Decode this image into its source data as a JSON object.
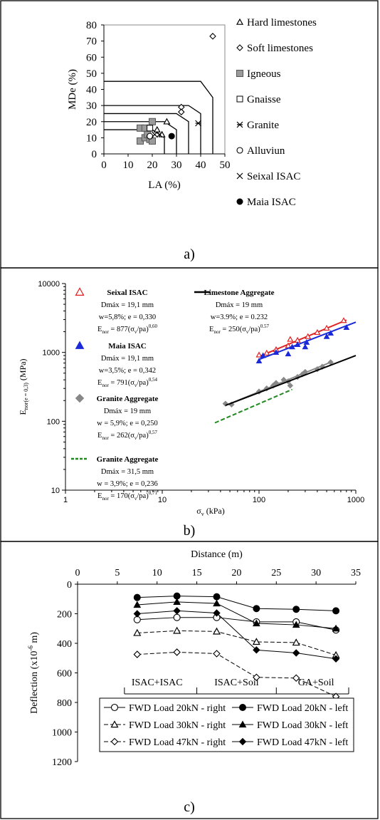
{
  "panels": [
    {
      "label": "a)"
    },
    {
      "label": "b)"
    },
    {
      "label": "c)"
    }
  ],
  "chart_data": [
    {
      "type": "scatter",
      "xlabel": "LA (%)",
      "ylabel": "MDe (%)",
      "xlim": [
        0,
        50
      ],
      "ylim": [
        0,
        80
      ],
      "x_ticks": [
        "0",
        "10",
        "20",
        "30",
        "40",
        "50"
      ],
      "y_ticks": [
        "0",
        "10",
        "20",
        "30",
        "40",
        "50",
        "60",
        "70",
        "80"
      ],
      "boundaries": [
        {
          "points": [
            [
              0,
              15
            ],
            [
              20,
              15
            ],
            [
              25,
              10
            ],
            [
              25,
              0
            ]
          ]
        },
        {
          "points": [
            [
              0,
              20
            ],
            [
              25,
              20
            ],
            [
              30,
              15
            ],
            [
              30,
              0
            ]
          ]
        },
        {
          "points": [
            [
              0,
              25
            ],
            [
              30,
              25
            ],
            [
              35,
              20
            ],
            [
              35,
              0
            ]
          ]
        },
        {
          "points": [
            [
              0,
              30
            ],
            [
              35,
              30
            ],
            [
              40,
              25
            ],
            [
              40,
              0
            ]
          ]
        },
        {
          "points": [
            [
              0,
              45
            ],
            [
              40,
              45
            ],
            [
              45,
              35
            ],
            [
              45,
              0
            ]
          ]
        }
      ],
      "series": [
        {
          "name": "Hard limestones",
          "marker": "triangle",
          "points": [
            [
              22,
              15
            ],
            [
              24,
              12
            ],
            [
              26,
              20
            ]
          ]
        },
        {
          "name": "Soft limestones",
          "marker": "diamond",
          "points": [
            [
              32,
              29
            ],
            [
              32,
              26
            ],
            [
              45,
              73
            ]
          ]
        },
        {
          "name": "Igneous",
          "marker": "gray-square",
          "points": [
            [
              15,
              8
            ],
            [
              15,
              16
            ],
            [
              17,
              16
            ],
            [
              17,
              10
            ],
            [
              18,
              12
            ],
            [
              19,
              9
            ],
            [
              20,
              8
            ],
            [
              20,
              20
            ]
          ]
        },
        {
          "name": "Gnaisse",
          "marker": "square",
          "points": [
            [
              19,
              16
            ]
          ]
        },
        {
          "name": "Granite",
          "marker": "asterisk",
          "points": [
            [
              39,
              19
            ]
          ]
        },
        {
          "name": "Alluviun",
          "marker": "circle",
          "points": [
            [
              19,
              11
            ]
          ]
        },
        {
          "name": "Seixal ISAC",
          "marker": "x",
          "points": [
            [
              21,
              12
            ],
            [
              23,
              12
            ]
          ]
        },
        {
          "name": "Maia ISAC",
          "marker": "filled-circle",
          "points": [
            [
              28,
              11
            ]
          ]
        }
      ]
    },
    {
      "type": "scatter",
      "xscale": "log",
      "yscale": "log",
      "xlabel_main": "σ",
      "xlabel_sub": "v",
      "xlabel_rest": " (kPa)",
      "ylabel_main": "E",
      "ylabel_sub": "nor(e = 0,3)",
      "ylabel_rest": " (MPa)",
      "xlim": [
        1,
        1000
      ],
      "ylim": [
        10,
        10000
      ],
      "x_ticks": [
        "1",
        "10",
        "100",
        "1000"
      ],
      "y_ticks": [
        "10",
        "100",
        "1000",
        "10000"
      ],
      "series": [
        {
          "name": "Seixal ISAC",
          "color": "#e02020",
          "marker": "open-triangle",
          "lines": [
            "Dmáx = 19,1 mm",
            "w=5,8%; e = 0,330"
          ],
          "eq_pre": "E",
          "eq_sub": "nor",
          "eq_mid": " = 877(σ",
          "eq_sub2": "v",
          "eq_post": "/pa)",
          "eq_exp": "0,60",
          "points": [
            [
              100,
              920
            ],
            [
              120,
              980
            ],
            [
              150,
              1100
            ],
            [
              200,
              1250
            ],
            [
              210,
              1550
            ],
            [
              250,
              1500
            ],
            [
              320,
              1700
            ],
            [
              400,
              1950
            ],
            [
              500,
              2250
            ],
            [
              750,
              2900
            ]
          ],
          "fit": {
            "x": [
              100,
              800
            ],
            "y": [
              870,
              2950
            ]
          }
        },
        {
          "name": "Maia ISAC",
          "color": "#1a2ad8",
          "marker": "filled-triangle",
          "lines": [
            "Dmáx = 19,1 mm",
            "w=3,5%; e = 0,342"
          ],
          "eq_pre": "E",
          "eq_sub": "nor",
          "eq_mid": " = 791(σ",
          "eq_sub2": "v",
          "eq_post": "/pa)",
          "eq_exp": "0,54",
          "points": [
            [
              100,
              750
            ],
            [
              110,
              900
            ],
            [
              150,
              1000
            ],
            [
              200,
              950
            ],
            [
              220,
              1200
            ],
            [
              250,
              1300
            ],
            [
              300,
              1200
            ],
            [
              310,
              1400
            ],
            [
              500,
              1700
            ],
            [
              550,
              1900
            ],
            [
              800,
              2300
            ]
          ],
          "fit": {
            "x": [
              100,
              1000
            ],
            "y": [
              790,
              2750
            ]
          }
        },
        {
          "name": "Granite Aggregate",
          "color": "#888888",
          "marker": "filled-diamond",
          "lines": [
            "Dmáx = 19 mm",
            "w = 5,9%; e = 0,250"
          ],
          "eq_pre": "E",
          "eq_sub": "nor",
          "eq_mid": " = 262(σ",
          "eq_sub2": "v",
          "eq_post": "/pa)",
          "eq_exp": "0,57",
          "points": [
            [
              45,
              180
            ],
            [
              52,
              175
            ],
            [
              100,
              270
            ],
            [
              120,
              300
            ],
            [
              140,
              330
            ],
            [
              150,
              360
            ],
            [
              180,
              400
            ],
            [
              200,
              380
            ],
            [
              210,
              330
            ],
            [
              250,
              440
            ],
            [
              280,
              480
            ],
            [
              300,
              520
            ],
            [
              400,
              570
            ],
            [
              450,
              620
            ],
            [
              550,
              720
            ]
          ],
          "fit": {
            "x": [
              50,
              550
            ],
            "y": [
              180,
              720
            ]
          }
        },
        {
          "name": "Granite Aggregate",
          "color": "#1f8a1f",
          "marker": "dashed-line",
          "lines": [
            "Dmáx = 31,5 mm",
            "w = 3,9%; e = 0,236"
          ],
          "eq_pre": "E",
          "eq_sub": "nor",
          "eq_mid": " = 170(σ",
          "eq_sub2": "v",
          "eq_post": "/pa)",
          "eq_exp": "0,71",
          "points": [],
          "fit": {
            "x": [
              35,
              220
            ],
            "y": [
              95,
              290
            ]
          }
        },
        {
          "name": "Limestone Aggregate",
          "color": "#000000",
          "marker": "solid-line",
          "lines": [
            "Dmáx = 19 mm",
            "w=3.9%; e = 0.232"
          ],
          "eq_pre": "E",
          "eq_sub": "nor",
          "eq_mid": " = 250(σ",
          "eq_sub2": "v",
          "eq_post": "/pa)",
          "eq_exp": "0.57",
          "points": [],
          "fit": {
            "x": [
              45,
              1000
            ],
            "y": [
              170,
              900
            ]
          }
        }
      ]
    },
    {
      "type": "line",
      "xlabel": "Distance (m)",
      "ylabel_pre": "Deflection (x10",
      "ylabel_exp": "-6",
      "ylabel_post": " m)",
      "xlim": [
        0,
        35
      ],
      "ylim": [
        0,
        1200
      ],
      "y_inverted": true,
      "x_ticks": [
        "0",
        "5",
        "10",
        "15",
        "20",
        "25",
        "30",
        "35"
      ],
      "y_ticks": [
        "0",
        "200",
        "400",
        "600",
        "800",
        "1000",
        "1200"
      ],
      "x": [
        7.5,
        12.5,
        17.5,
        22.5,
        27.5,
        32.5
      ],
      "zones": [
        {
          "label": "ISAC+ISAC",
          "from": 5,
          "to": 15
        },
        {
          "label": "ISAC+Soil",
          "from": 15,
          "to": 25
        },
        {
          "label": "GA+Soil",
          "from": 25,
          "to": 35
        }
      ],
      "series": [
        {
          "name": "FWD Load 20kN - right",
          "marker": "open-circle",
          "dashed": false,
          "values": [
            240,
            225,
            225,
            255,
            255,
            310
          ]
        },
        {
          "name": "FWD Load 20kN - left",
          "marker": "filled-circle",
          "dashed": false,
          "values": [
            90,
            80,
            85,
            165,
            170,
            180
          ]
        },
        {
          "name": "FWD Load 30kN - right",
          "marker": "open-triangle",
          "dashed": true,
          "values": [
            330,
            315,
            320,
            390,
            395,
            480
          ]
        },
        {
          "name": "FWD Load 30kN - left",
          "marker": "filled-triangle",
          "dashed": false,
          "values": [
            140,
            120,
            130,
            265,
            275,
            300
          ]
        },
        {
          "name": "FWD Load 47kN - right",
          "marker": "open-diamond",
          "dashed": true,
          "values": [
            475,
            460,
            470,
            630,
            635,
            760
          ]
        },
        {
          "name": "FWD Load 47kN - left",
          "marker": "filled-diamond",
          "dashed": false,
          "values": [
            200,
            180,
            195,
            445,
            465,
            505
          ]
        }
      ]
    }
  ]
}
